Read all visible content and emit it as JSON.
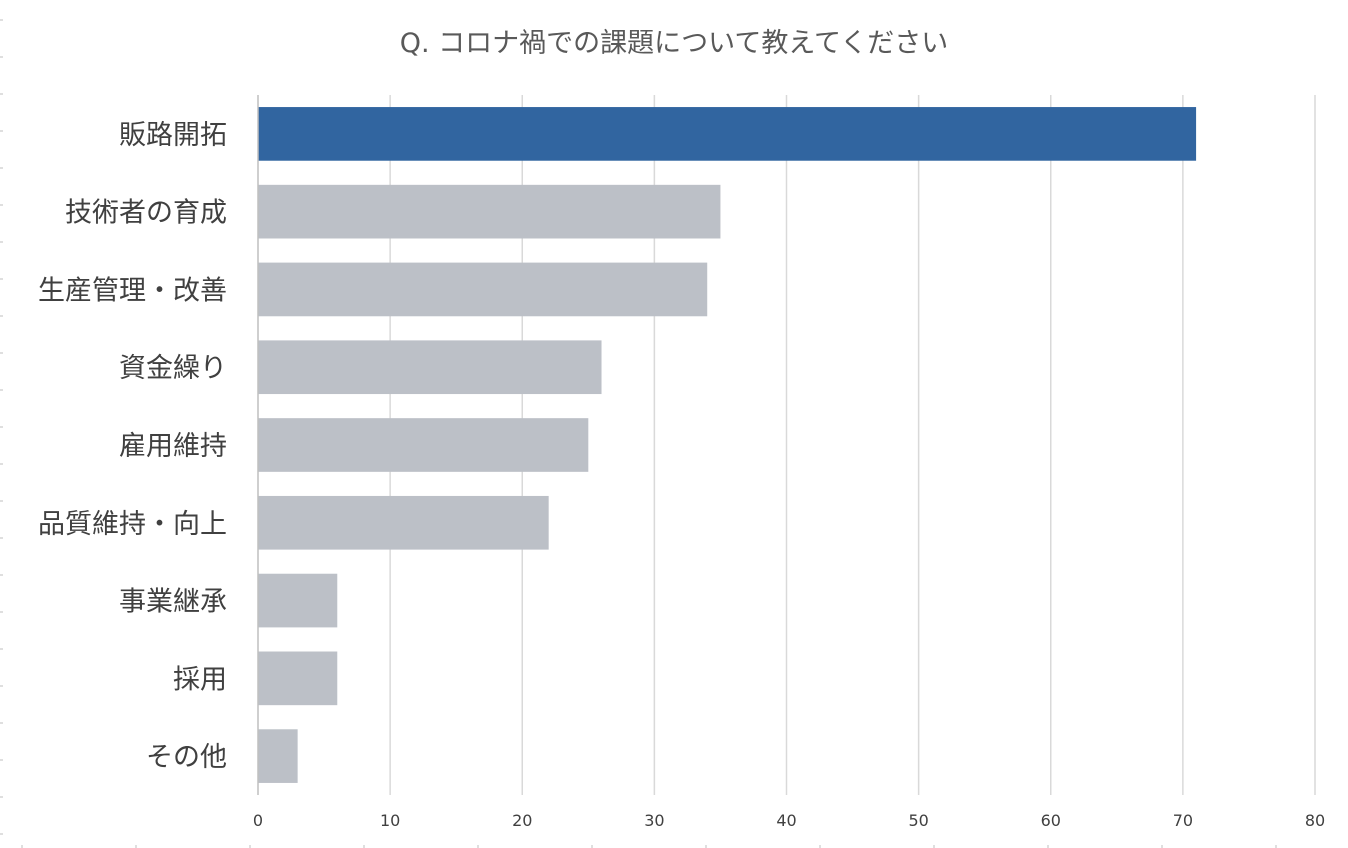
{
  "chart_data": {
    "type": "bar",
    "orientation": "horizontal",
    "title": "Q. コロナ禍での課題について教えてください",
    "categories": [
      "販路開拓",
      "技術者の育成",
      "生産管理・改善",
      "資金繰り",
      "雇用維持",
      "品質維持・向上",
      "事業継承",
      "採用",
      "その他"
    ],
    "values": [
      71,
      35,
      34,
      26,
      25,
      22,
      6,
      6,
      3
    ],
    "xlim": [
      0,
      80
    ],
    "xticks": [
      "0",
      "10",
      "20",
      "30",
      "40",
      "50",
      "60",
      "70",
      "80"
    ],
    "grid": true,
    "legend": "none",
    "colors": {
      "highlight": "#3165a0",
      "default": "#bcc0c7"
    }
  }
}
